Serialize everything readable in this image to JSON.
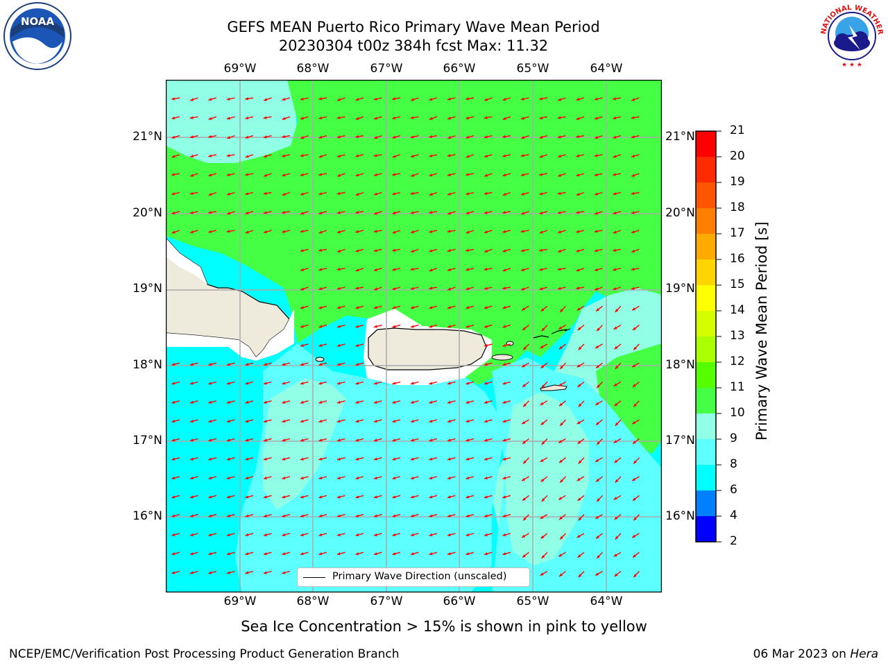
{
  "header": {
    "title_line1": "GEFS MEAN Puerto Rico Primary Wave Mean Period",
    "title_line2": "20230304 t00z 384h fcst   Max: 11.32"
  },
  "logos": {
    "left": "noara-logo",
    "right": "nws-logo",
    "left_text": "NOAA",
    "right_text": "NATIONAL WEATHER SERVICE"
  },
  "map": {
    "lon_labels": [
      "69°W",
      "68°W",
      "67°W",
      "66°W",
      "65°W",
      "64°W"
    ],
    "lat_labels": [
      "21°N",
      "20°N",
      "19°N",
      "18°N",
      "17°N",
      "16°N"
    ],
    "legend_label": "Primary Wave Direction (unscaled)",
    "colors": {
      "ocean_cyan": "#00ffff",
      "cyan_light": "#5effff",
      "aqua_light": "#90ffe6",
      "green": "#44ff44",
      "land": "#efebdc",
      "arrow": "#ff0000"
    }
  },
  "colorbar": {
    "title": "Primary Wave Mean Period [s]",
    "ticks": [
      "21",
      "20",
      "19",
      "18",
      "17",
      "16",
      "15",
      "14",
      "13",
      "12",
      "11",
      "10",
      "9",
      "8",
      "6",
      "4",
      "2"
    ],
    "colors": [
      "#ff0000",
      "#ff2a00",
      "#ff5500",
      "#ff8000",
      "#ffaa00",
      "#ffd500",
      "#ffff00",
      "#d5ff00",
      "#aaff00",
      "#55ff00",
      "#44ff44",
      "#90ffe6",
      "#5effff",
      "#00ffff",
      "#0080ff",
      "#0000ff"
    ]
  },
  "notes": {
    "sea_ice": "Sea Ice Concentration > 15% is shown in pink to yellow"
  },
  "footer": {
    "left": "NCEP/EMC/Verification Post Processing Product Generation Branch",
    "right_date": "06 Mar 2023 on ",
    "right_host": "Hera"
  }
}
